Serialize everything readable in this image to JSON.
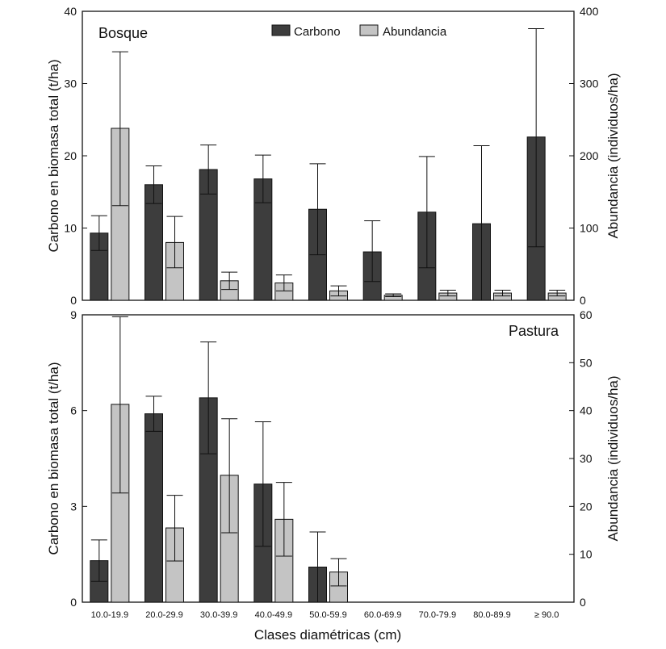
{
  "chart_data": [
    {
      "type": "bar",
      "panel_label": "Bosque",
      "categories": [
        "10.0-19.9",
        "20.0-29.9",
        "30.0-39.9",
        "40.0-49.9",
        "50.0-59.9",
        "60.0-69.9",
        "70.0-79.9",
        "80.0-89.9",
        "≥ 90.0"
      ],
      "ylabel": "Carbono en biomasa total (t/ha)",
      "y2label": "Abundancia (individuos/ha)",
      "ylim": [
        0,
        40
      ],
      "y2lim": [
        0,
        400
      ],
      "yticks": [
        0,
        10,
        20,
        30,
        40
      ],
      "y2ticks": [
        0,
        100,
        200,
        300,
        400
      ],
      "series": [
        {
          "name": "Carbono",
          "axis": "left",
          "color": "#3d3d3d",
          "values": [
            9.3,
            16.0,
            18.1,
            16.8,
            12.6,
            6.7,
            12.2,
            10.6,
            22.6
          ],
          "upper": [
            11.7,
            18.6,
            21.5,
            20.1,
            18.9,
            11.0,
            19.9,
            21.4,
            37.6
          ],
          "lower": [
            6.9,
            13.4,
            14.7,
            13.5,
            6.3,
            2.6,
            4.5,
            0,
            7.4
          ]
        },
        {
          "name": "Abundancia",
          "axis": "right",
          "color": "#c4c4c4",
          "values": [
            238,
            80,
            27,
            24,
            13,
            7,
            10,
            10,
            10
          ],
          "upper": [
            344,
            116,
            39,
            35,
            20,
            9,
            14,
            14,
            14
          ],
          "lower": [
            131,
            45,
            15,
            13,
            6,
            5,
            6,
            6,
            6
          ]
        }
      ]
    },
    {
      "type": "bar",
      "panel_label": "Pastura",
      "categories": [
        "10.0-19.9",
        "20.0-29.9",
        "30.0-39.9",
        "40.0-49.9",
        "50.0-59.9",
        "60.0-69.9",
        "70.0-79.9",
        "80.0-89.9",
        "≥ 90.0"
      ],
      "xlabel": "Clases diamétricas (cm)",
      "ylabel": "Carbono en biomasa total (t/ha)",
      "y2label": "Abundancia (individuos/ha)",
      "ylim": [
        0,
        9
      ],
      "y2lim": [
        0,
        60
      ],
      "yticks": [
        0,
        3,
        6,
        9
      ],
      "y2ticks": [
        0,
        10,
        20,
        30,
        40,
        50,
        60
      ],
      "series": [
        {
          "name": "Carbono",
          "axis": "left",
          "color": "#3d3d3d",
          "values": [
            1.3,
            5.9,
            6.4,
            3.7,
            1.1,
            null,
            null,
            null,
            null
          ],
          "upper": [
            1.95,
            6.45,
            8.15,
            5.65,
            2.2,
            null,
            null,
            null,
            null
          ],
          "lower": [
            0.65,
            5.35,
            4.65,
            1.75,
            0,
            null,
            null,
            null,
            null
          ]
        },
        {
          "name": "Abundancia",
          "axis": "right",
          "color": "#c4c4c4",
          "values": [
            41.3,
            15.5,
            26.5,
            17.3,
            6.3,
            null,
            null,
            null,
            null
          ],
          "upper": [
            59.6,
            22.3,
            38.3,
            25.0,
            9.1,
            null,
            null,
            null,
            null
          ],
          "lower": [
            22.8,
            8.6,
            14.5,
            9.6,
            3.4,
            null,
            null,
            null,
            null
          ]
        }
      ]
    }
  ],
  "legend": {
    "items": [
      {
        "label": "Carbono",
        "color": "#3d3d3d"
      },
      {
        "label": "Abundancia",
        "color": "#c4c4c4"
      }
    ]
  }
}
